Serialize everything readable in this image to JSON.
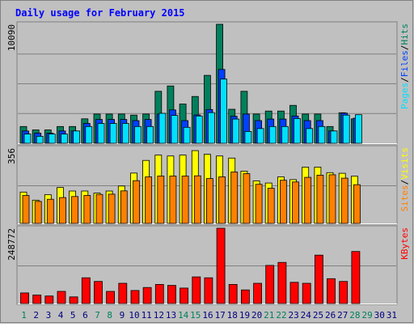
{
  "title": "Daily usage for February 2015",
  "colors": {
    "background": "#c0c0c0",
    "frame_dark": "#808080",
    "frame_light": "#ffffff",
    "title": "#0000ff",
    "grid": "#808080",
    "hits": "#00805c",
    "files": "#0040ff",
    "pages": "#00e0ff",
    "visits": "#ffff00",
    "sites": "#ff8000",
    "kbytes": "#ff0000",
    "weekend_label": "#00805c",
    "weekday_label": "#000080"
  },
  "days": [
    "1",
    "2",
    "3",
    "4",
    "5",
    "6",
    "7",
    "8",
    "9",
    "10",
    "11",
    "12",
    "13",
    "14",
    "15",
    "16",
    "17",
    "18",
    "19",
    "20",
    "21",
    "22",
    "23",
    "24",
    "25",
    "26",
    "27",
    "28",
    "29",
    "30",
    "31"
  ],
  "weekend_days": [
    1,
    7,
    8,
    14,
    15,
    21,
    22,
    28,
    29
  ],
  "chart_data": [
    {
      "type": "bar",
      "panel": "top",
      "categories": [
        "1",
        "2",
        "3",
        "4",
        "5",
        "6",
        "7",
        "8",
        "9",
        "10",
        "11",
        "12",
        "13",
        "14",
        "15",
        "16",
        "17",
        "18",
        "19",
        "20",
        "21",
        "22",
        "23",
        "24",
        "25",
        "26",
        "27",
        "28"
      ],
      "ylim": [
        0,
        10090
      ],
      "ytick": "10090",
      "legend": [
        {
          "text": "Pages",
          "color": "#00e0ff"
        },
        {
          "text": "Files",
          "color": "#0040ff"
        },
        {
          "text": "Hits",
          "color": "#00805c"
        }
      ],
      "separator": "/",
      "series": [
        {
          "name": "Hits",
          "values": [
            1420,
            1130,
            1130,
            1420,
            1420,
            2070,
            2480,
            2480,
            2480,
            2390,
            2480,
            4410,
            4860,
            3330,
            3970,
            5760,
            10090,
            2880,
            4410,
            2480,
            2730,
            2730,
            3210,
            2480,
            2480,
            1420,
            2590,
            2070
          ]
        },
        {
          "name": "Files",
          "values": [
            1040,
            860,
            860,
            1040,
            1040,
            1680,
            2020,
            2020,
            2020,
            1920,
            2020,
            2480,
            2830,
            1920,
            2400,
            2860,
            6260,
            2290,
            2480,
            1920,
            2050,
            2050,
            2310,
            1920,
            1920,
            1040,
            2550,
            2130
          ]
        },
        {
          "name": "Pages",
          "values": [
            780,
            590,
            780,
            780,
            1040,
            1420,
            1680,
            1680,
            1680,
            1420,
            1420,
            2540,
            2360,
            1350,
            2310,
            2600,
            5440,
            2050,
            1000,
            1250,
            1420,
            1420,
            2100,
            1250,
            1420,
            1040,
            2390,
            2420
          ]
        }
      ]
    },
    {
      "type": "bar",
      "panel": "middle",
      "categories": [
        "1",
        "2",
        "3",
        "4",
        "5",
        "6",
        "7",
        "8",
        "9",
        "10",
        "11",
        "12",
        "13",
        "14",
        "15",
        "16",
        "17",
        "18",
        "19",
        "20",
        "21",
        "22",
        "23",
        "24",
        "25",
        "26",
        "27",
        "28"
      ],
      "ylim": [
        0,
        356
      ],
      "ytick": "356",
      "legend": [
        {
          "text": "Sites",
          "color": "#ff8000"
        },
        {
          "text": "Visits",
          "color": "#ffff00"
        }
      ],
      "separator": "/",
      "series": [
        {
          "name": "Visits",
          "values": [
            148,
            110,
            136,
            170,
            153,
            153,
            143,
            153,
            177,
            238,
            298,
            323,
            319,
            323,
            344,
            327,
            319,
            309,
            247,
            201,
            191,
            220,
            207,
            266,
            266,
            240,
            237,
            223
          ]
        },
        {
          "name": "Sites",
          "values": [
            132,
            104,
            114,
            122,
            127,
            132,
            137,
            138,
            154,
            202,
            220,
            224,
            224,
            224,
            225,
            212,
            220,
            243,
            235,
            185,
            166,
            204,
            196,
            218,
            228,
            230,
            214,
            183
          ]
        }
      ]
    },
    {
      "type": "bar",
      "panel": "bottom",
      "categories": [
        "1",
        "2",
        "3",
        "4",
        "5",
        "6",
        "7",
        "8",
        "9",
        "10",
        "11",
        "12",
        "13",
        "14",
        "15",
        "16",
        "17",
        "18",
        "19",
        "20",
        "21",
        "22",
        "23",
        "24",
        "25",
        "26",
        "27",
        "28"
      ],
      "ylim": [
        0,
        248772
      ],
      "ytick": "248772",
      "legend": [
        {
          "text": "KBytes",
          "color": "#ff0000"
        }
      ],
      "series": [
        {
          "name": "KBytes",
          "values": [
            35000,
            28000,
            25000,
            40000,
            22000,
            85000,
            73000,
            40000,
            67000,
            43000,
            53000,
            63000,
            60000,
            51000,
            88000,
            85000,
            248772,
            63000,
            45000,
            67000,
            126000,
            136000,
            70000,
            67000,
            160000,
            82000,
            73000,
            172000
          ]
        }
      ]
    }
  ]
}
